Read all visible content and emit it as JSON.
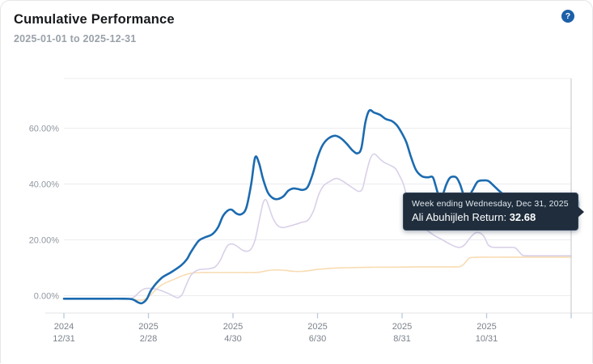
{
  "header": {
    "title": "Cumulative Performance",
    "subtitle": "2025-01-01 to 2025-12-31",
    "help_glyph": "?"
  },
  "tooltip": {
    "line1": "Week ending Wednesday, Dec 31, 2025",
    "series_label": "Ali Abuhijleh Return:",
    "value": "32.68"
  },
  "colors": {
    "accent_blue": "#1c6bb0",
    "lavender": "#d9d0e8",
    "orange": "#f8dcb2",
    "grid": "#ededf1",
    "axis": "#e3e3e6",
    "tick": "#b7cade",
    "crosshair": "#c6c6ca",
    "y_label": "#9097a0",
    "x_label": "#7b828a",
    "halo": "rgba(140,180,220,0.45)",
    "marker_fill": "#1e5fa6",
    "marker_edge": "#a9c7e4",
    "tooltip_bg": "#1f2d3c",
    "help_bg": "#1b60a8"
  },
  "chart_data": {
    "type": "line",
    "title": "Cumulative Performance",
    "xlabel": "",
    "ylabel": "",
    "grid": true,
    "legend": "none",
    "x_axis": {
      "unit": "weeks",
      "range_weeks": [
        0,
        52
      ],
      "tick_labels": [
        {
          "year": "2024",
          "date": "12/31"
        },
        {
          "year": "2025",
          "date": "2/28"
        },
        {
          "year": "2025",
          "date": "4/30"
        },
        {
          "year": "2025",
          "date": "6/30"
        },
        {
          "year": "2025",
          "date": "8/31"
        },
        {
          "year": "2025",
          "date": "10/31"
        }
      ],
      "extra_unlabeled_tick": true
    },
    "y_axis": {
      "tick_labels": [
        "0.00%",
        "20.00%",
        "40.00%",
        "60.00%"
      ],
      "tick_values": [
        0,
        20,
        40,
        60
      ],
      "ylim": [
        -6.2,
        77.8
      ]
    },
    "marker": {
      "week": 52,
      "value": 32.68,
      "series": "Ali Abuhijleh Return"
    },
    "series": [
      {
        "name": "unlabeled-series-3",
        "color": "#f8dcb2",
        "width": 1.6,
        "points": [
          [
            0,
            -1.2
          ],
          [
            3,
            -1.2
          ],
          [
            6,
            -1.2
          ],
          [
            7,
            -1.3
          ],
          [
            7.6,
            -1.6
          ],
          [
            8.2,
            -1.4
          ],
          [
            8.8,
            0
          ],
          [
            9.4,
            2
          ],
          [
            10,
            3.8
          ],
          [
            10.7,
            5
          ],
          [
            11.4,
            6
          ],
          [
            12.2,
            7.2
          ],
          [
            13,
            8
          ],
          [
            14,
            8.3
          ],
          [
            15,
            8.3
          ],
          [
            16,
            8.3
          ],
          [
            17,
            8.3
          ],
          [
            18,
            8.3
          ],
          [
            19,
            8.3
          ],
          [
            20,
            8.4
          ],
          [
            20.6,
            8.8
          ],
          [
            21.2,
            9.1
          ],
          [
            22,
            9.2
          ],
          [
            22.8,
            9
          ],
          [
            23.6,
            8.7
          ],
          [
            24.4,
            8.7
          ],
          [
            25.2,
            9
          ],
          [
            26,
            9.4
          ],
          [
            27,
            9.7
          ],
          [
            28,
            9.9
          ],
          [
            29,
            10
          ],
          [
            30,
            10.1
          ],
          [
            32,
            10.2
          ],
          [
            34,
            10.2
          ],
          [
            36,
            10.3
          ],
          [
            38,
            10.3
          ],
          [
            40,
            10.3
          ],
          [
            40.6,
            10.4
          ],
          [
            41,
            11.3
          ],
          [
            41.5,
            13.3
          ],
          [
            41.9,
            13.7
          ],
          [
            43,
            13.8
          ],
          [
            45,
            13.8
          ],
          [
            47,
            13.8
          ],
          [
            49,
            13.8
          ],
          [
            52,
            13.8
          ]
        ]
      },
      {
        "name": "unlabeled-series-2",
        "color": "#d9d0e8",
        "width": 1.6,
        "points": [
          [
            0,
            -1.1
          ],
          [
            3,
            -1.1
          ],
          [
            6,
            -1.1
          ],
          [
            6.8,
            -1.1
          ],
          [
            7.3,
            -0.2
          ],
          [
            7.8,
            1.5
          ],
          [
            8.3,
            2.5
          ],
          [
            9,
            2.6
          ],
          [
            9.6,
            2.2
          ],
          [
            10.2,
            1.5
          ],
          [
            10.8,
            0.6
          ],
          [
            11.3,
            -0.3
          ],
          [
            11.7,
            -0.7
          ],
          [
            12.1,
            0.3
          ],
          [
            12.5,
            3.5
          ],
          [
            13,
            7.2
          ],
          [
            13.5,
            8.8
          ],
          [
            14,
            9.4
          ],
          [
            14.8,
            9.6
          ],
          [
            15.5,
            10.3
          ],
          [
            16,
            12.5
          ],
          [
            16.4,
            15.5
          ],
          [
            16.8,
            18
          ],
          [
            17.3,
            18.5
          ],
          [
            17.8,
            17.6
          ],
          [
            18.3,
            16.3
          ],
          [
            18.8,
            15.9
          ],
          [
            19.2,
            16.8
          ],
          [
            19.6,
            20
          ],
          [
            20,
            26.5
          ],
          [
            20.4,
            33
          ],
          [
            20.7,
            34.4
          ],
          [
            21,
            32
          ],
          [
            21.4,
            28
          ],
          [
            21.9,
            25.2
          ],
          [
            22.4,
            24.4
          ],
          [
            23,
            24.8
          ],
          [
            23.7,
            25.5
          ],
          [
            24.4,
            26.3
          ],
          [
            25,
            27
          ],
          [
            25.6,
            30.5
          ],
          [
            26.1,
            36
          ],
          [
            26.6,
            39.3
          ],
          [
            27.2,
            40.8
          ],
          [
            27.9,
            42
          ],
          [
            28.5,
            41.2
          ],
          [
            29.1,
            39.8
          ],
          [
            29.7,
            38.4
          ],
          [
            30.2,
            37.4
          ],
          [
            30.6,
            38.3
          ],
          [
            31,
            44
          ],
          [
            31.4,
            49
          ],
          [
            31.8,
            50.8
          ],
          [
            32.3,
            49.3
          ],
          [
            32.8,
            47.8
          ],
          [
            33.4,
            46.8
          ],
          [
            34,
            45.5
          ],
          [
            34.4,
            43
          ],
          [
            34.8,
            40
          ],
          [
            35.3,
            34
          ],
          [
            35.9,
            29
          ],
          [
            36.5,
            25.5
          ],
          [
            37.2,
            23.5
          ],
          [
            38,
            21.5
          ],
          [
            38.8,
            20
          ],
          [
            39.5,
            18.6
          ],
          [
            40.1,
            17.6
          ],
          [
            40.6,
            17.3
          ],
          [
            41.1,
            18.3
          ],
          [
            41.7,
            21
          ],
          [
            42.2,
            22.5
          ],
          [
            42.7,
            22.4
          ],
          [
            43.1,
            21
          ],
          [
            43.5,
            18.2
          ],
          [
            43.9,
            17.4
          ],
          [
            44.5,
            17.3
          ],
          [
            45.5,
            17.3
          ],
          [
            46.2,
            17.2
          ],
          [
            46.6,
            16
          ],
          [
            47,
            14.5
          ],
          [
            47.4,
            14.3
          ],
          [
            48.5,
            14.3
          ],
          [
            50,
            14.3
          ],
          [
            52,
            14.3
          ]
        ]
      },
      {
        "name": "Ali Abuhijleh Return",
        "color": "#1c6bb0",
        "width": 2.6,
        "points": [
          [
            0,
            -1.1
          ],
          [
            2,
            -1.1
          ],
          [
            4,
            -1.1
          ],
          [
            6,
            -1.1
          ],
          [
            7,
            -1.3
          ],
          [
            7.6,
            -2.4
          ],
          [
            8,
            -2.7
          ],
          [
            8.5,
            -1.2
          ],
          [
            9,
            2.3
          ],
          [
            10,
            6.3
          ],
          [
            11,
            8.4
          ],
          [
            12,
            10.8
          ],
          [
            12.6,
            13
          ],
          [
            13,
            15.5
          ],
          [
            13.8,
            19.6
          ],
          [
            14.4,
            20.8
          ],
          [
            15.2,
            22
          ],
          [
            15.8,
            24.5
          ],
          [
            16.3,
            28.5
          ],
          [
            16.8,
            30.5
          ],
          [
            17.2,
            30.8
          ],
          [
            17.7,
            29.4
          ],
          [
            18.2,
            29.2
          ],
          [
            18.7,
            31.5
          ],
          [
            19.2,
            40
          ],
          [
            19.6,
            49.5
          ],
          [
            20,
            47.5
          ],
          [
            20.4,
            42
          ],
          [
            20.9,
            37
          ],
          [
            21.4,
            35
          ],
          [
            21.9,
            34.6
          ],
          [
            22.5,
            35.6
          ],
          [
            23,
            37.6
          ],
          [
            23.5,
            38.4
          ],
          [
            24,
            38.2
          ],
          [
            24.5,
            37.9
          ],
          [
            25,
            39
          ],
          [
            25.5,
            43.5
          ],
          [
            26,
            49.5
          ],
          [
            26.5,
            53.8
          ],
          [
            27.1,
            56.3
          ],
          [
            27.8,
            57.3
          ],
          [
            28.4,
            56.4
          ],
          [
            29,
            54.4
          ],
          [
            29.6,
            52
          ],
          [
            30.1,
            51
          ],
          [
            30.5,
            53
          ],
          [
            30.9,
            62
          ],
          [
            31.3,
            66.3
          ],
          [
            31.8,
            65.6
          ],
          [
            32.4,
            64.8
          ],
          [
            33,
            63.3
          ],
          [
            33.6,
            62.6
          ],
          [
            34.1,
            61.2
          ],
          [
            34.6,
            58.5
          ],
          [
            35.1,
            55
          ],
          [
            35.6,
            49.5
          ],
          [
            36.1,
            45
          ],
          [
            36.7,
            42.8
          ],
          [
            37.3,
            42.4
          ],
          [
            37.8,
            42.5
          ],
          [
            38.1,
            39.5
          ],
          [
            38.4,
            36.2
          ],
          [
            38.8,
            36
          ],
          [
            39.2,
            39.8
          ],
          [
            39.6,
            42.3
          ],
          [
            40.2,
            42.4
          ],
          [
            40.6,
            40
          ],
          [
            41,
            36
          ],
          [
            41.4,
            35.2
          ],
          [
            41.9,
            37.8
          ],
          [
            42.4,
            40.8
          ],
          [
            43,
            41.3
          ],
          [
            43.5,
            41.1
          ],
          [
            44,
            39.6
          ],
          [
            44.8,
            37
          ],
          [
            45.6,
            35.2
          ],
          [
            46.5,
            34
          ],
          [
            47.5,
            33.3
          ],
          [
            48.5,
            32.9
          ],
          [
            49.5,
            32.75
          ],
          [
            50.5,
            32.7
          ],
          [
            51.2,
            32.7
          ],
          [
            52,
            32.68
          ]
        ]
      }
    ]
  }
}
